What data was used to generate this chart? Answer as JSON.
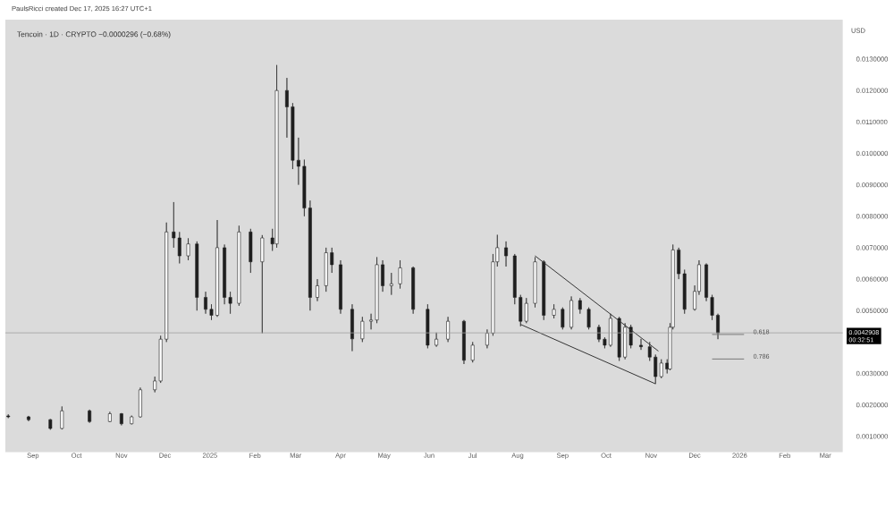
{
  "chart_data": {
    "type": "candlestick",
    "title": "Tencoin · 1D · CRYPTO  −0.0000296 (−0.68%)",
    "ylabel": "USD",
    "annotations": [
      "PaulsRicci created Dec 17, 2025 16:27 UTC+1",
      "00:32:51",
      {
        "text": "0.618",
        "x": "2026-01-04",
        "y": 0.00424
      },
      {
        "text": "0.786",
        "x": "2026-01-04",
        "y": 0.00346
      }
    ],
    "color": "#1e1e1e",
    "x": [
      "2024-08-15",
      "2024-08-29",
      "2024-09-13",
      "2024-09-21",
      "2024-10-10",
      "2024-10-24",
      "2024-11-01",
      "2024-11-08",
      "2024-11-14",
      "2024-11-24",
      "2024-11-28",
      "2024-12-02",
      "2024-12-07",
      "2024-12-11",
      "2024-12-17",
      "2024-12-23",
      "2024-12-29",
      "2025-01-02",
      "2025-01-06",
      "2025-01-11",
      "2025-01-15",
      "2025-01-21",
      "2025-01-29",
      "2025-02-06",
      "2025-02-13",
      "2025-02-16",
      "2025-02-23",
      "2025-02-27",
      "2025-03-03",
      "2025-03-07",
      "2025-03-11",
      "2025-03-16",
      "2025-03-22",
      "2025-03-26",
      "2025-04-01",
      "2025-04-09",
      "2025-04-16",
      "2025-04-22",
      "2025-04-26",
      "2025-04-30",
      "2025-05-06",
      "2025-05-12",
      "2025-05-21",
      "2025-05-31",
      "2025-06-06",
      "2025-06-14",
      "2025-06-25",
      "2025-07-01",
      "2025-07-11",
      "2025-07-15",
      "2025-07-18",
      "2025-07-24",
      "2025-07-30",
      "2025-08-03",
      "2025-08-07",
      "2025-08-13",
      "2025-08-19",
      "2025-08-26",
      "2025-09-01",
      "2025-09-07",
      "2025-09-13",
      "2025-09-19",
      "2025-09-26",
      "2025-09-30",
      "2025-10-04",
      "2025-10-10",
      "2025-10-14",
      "2025-10-18",
      "2025-10-25",
      "2025-10-31",
      "2025-11-04",
      "2025-11-08",
      "2025-11-12",
      "2025-11-14",
      "2025-11-16",
      "2025-11-20",
      "2025-11-24",
      "2025-12-01",
      "2025-12-04",
      "2025-12-09",
      "2025-12-13",
      "2025-12-17"
    ],
    "ohlc": [
      [
        0.00165,
        0.0017,
        0.00158,
        0.00162
      ],
      [
        0.00162,
        0.00165,
        0.00148,
        0.00153
      ],
      [
        0.00153,
        0.00155,
        0.00121,
        0.00125
      ],
      [
        0.00125,
        0.00195,
        0.00122,
        0.00181
      ],
      [
        0.00181,
        0.00185,
        0.00143,
        0.00147
      ],
      [
        0.00147,
        0.00178,
        0.00145,
        0.00172
      ],
      [
        0.00172,
        0.00174,
        0.00135,
        0.0014
      ],
      [
        0.0014,
        0.00166,
        0.00138,
        0.00162
      ],
      [
        0.00162,
        0.00255,
        0.0016,
        0.00248
      ],
      [
        0.00248,
        0.0029,
        0.0024,
        0.00276
      ],
      [
        0.00276,
        0.0042,
        0.0027,
        0.00409
      ],
      [
        0.00409,
        0.0078,
        0.004,
        0.0075
      ],
      [
        0.0075,
        0.00845,
        0.007,
        0.00731
      ],
      [
        0.00731,
        0.0075,
        0.0065,
        0.00674
      ],
      [
        0.00674,
        0.0073,
        0.0066,
        0.00712
      ],
      [
        0.00712,
        0.0072,
        0.005,
        0.00542
      ],
      [
        0.00542,
        0.0056,
        0.0049,
        0.00504
      ],
      [
        0.00504,
        0.0052,
        0.0047,
        0.00485
      ],
      [
        0.00485,
        0.00788,
        0.0048,
        0.007
      ],
      [
        0.007,
        0.0071,
        0.0052,
        0.00542
      ],
      [
        0.00542,
        0.0056,
        0.0049,
        0.00523
      ],
      [
        0.00523,
        0.0077,
        0.00515,
        0.0075
      ],
      [
        0.0075,
        0.0076,
        0.0062,
        0.00655
      ],
      [
        0.00655,
        0.0074,
        0.00428,
        0.00731
      ],
      [
        0.00731,
        0.0076,
        0.0069,
        0.00712
      ],
      [
        0.00712,
        0.01281,
        0.007,
        0.012
      ],
      [
        0.012,
        0.0124,
        0.0105,
        0.01148
      ],
      [
        0.01148,
        0.0116,
        0.0095,
        0.00978
      ],
      [
        0.00978,
        0.0105,
        0.009,
        0.00959
      ],
      [
        0.00959,
        0.0098,
        0.008,
        0.00826
      ],
      [
        0.00826,
        0.0085,
        0.005,
        0.00542
      ],
      [
        0.00542,
        0.006,
        0.0053,
        0.00579
      ],
      [
        0.00579,
        0.007,
        0.0056,
        0.00684
      ],
      [
        0.00684,
        0.007,
        0.0062,
        0.00646
      ],
      [
        0.00646,
        0.0066,
        0.0049,
        0.00504
      ],
      [
        0.00504,
        0.0052,
        0.00371,
        0.0041
      ],
      [
        0.0041,
        0.0048,
        0.004,
        0.00466
      ],
      [
        0.00466,
        0.0049,
        0.0044,
        0.0047
      ],
      [
        0.0047,
        0.0067,
        0.0046,
        0.00646
      ],
      [
        0.00646,
        0.0066,
        0.0056,
        0.00579
      ],
      [
        0.00579,
        0.0062,
        0.0055,
        0.00585
      ],
      [
        0.00585,
        0.0066,
        0.0057,
        0.00636
      ],
      [
        0.00636,
        0.0064,
        0.0049,
        0.00504
      ],
      [
        0.00504,
        0.0052,
        0.0038,
        0.0039
      ],
      [
        0.0039,
        0.0043,
        0.00385,
        0.00409
      ],
      [
        0.00409,
        0.0048,
        0.004,
        0.00466
      ],
      [
        0.00466,
        0.0047,
        0.0033,
        0.00342
      ],
      [
        0.00342,
        0.004,
        0.00335,
        0.0039
      ],
      [
        0.0039,
        0.0044,
        0.0038,
        0.00428
      ],
      [
        0.00428,
        0.0068,
        0.0042,
        0.00655
      ],
      [
        0.00655,
        0.00741,
        0.0064,
        0.007
      ],
      [
        0.007,
        0.0072,
        0.0064,
        0.00674
      ],
      [
        0.00674,
        0.0068,
        0.0052,
        0.00542
      ],
      [
        0.00542,
        0.0055,
        0.0045,
        0.00466
      ],
      [
        0.00466,
        0.0054,
        0.0046,
        0.00523
      ],
      [
        0.00523,
        0.0067,
        0.0051,
        0.00655
      ],
      [
        0.00655,
        0.0066,
        0.0047,
        0.00485
      ],
      [
        0.00485,
        0.0052,
        0.00475,
        0.00504
      ],
      [
        0.00504,
        0.0051,
        0.0044,
        0.00447
      ],
      [
        0.00447,
        0.00545,
        0.0044,
        0.00532
      ],
      [
        0.00532,
        0.0054,
        0.0049,
        0.00504
      ],
      [
        0.00504,
        0.0051,
        0.0044,
        0.00447
      ],
      [
        0.00447,
        0.00455,
        0.004,
        0.00409
      ],
      [
        0.00409,
        0.00415,
        0.0038,
        0.0039
      ],
      [
        0.0039,
        0.0049,
        0.00385,
        0.00475
      ],
      [
        0.00475,
        0.0048,
        0.0034,
        0.00352
      ],
      [
        0.00352,
        0.0046,
        0.00345,
        0.00447
      ],
      [
        0.00447,
        0.00455,
        0.0038,
        0.0039
      ],
      [
        0.0039,
        0.0041,
        0.00375,
        0.00385
      ],
      [
        0.00385,
        0.004,
        0.0034,
        0.00352
      ],
      [
        0.00352,
        0.0036,
        0.00267,
        0.0029
      ],
      [
        0.0029,
        0.00345,
        0.00285,
        0.00333
      ],
      [
        0.00333,
        0.00345,
        0.003,
        0.00314
      ],
      [
        0.00314,
        0.0046,
        0.0031,
        0.00447
      ],
      [
        0.00447,
        0.0071,
        0.0044,
        0.00693
      ],
      [
        0.00693,
        0.007,
        0.006,
        0.00617
      ],
      [
        0.00617,
        0.0063,
        0.0049,
        0.00504
      ],
      [
        0.00504,
        0.0058,
        0.005,
        0.00561
      ],
      [
        0.00561,
        0.0066,
        0.0055,
        0.00646
      ],
      [
        0.00646,
        0.0065,
        0.0053,
        0.00542
      ],
      [
        0.00542,
        0.0055,
        0.0047,
        0.00485
      ],
      [
        0.00485,
        0.0049,
        0.00409,
        0.00429
      ]
    ],
    "series": [
      {
        "type": "line",
        "color": "#333333",
        "x": [
          "2025-08-13",
          "2025-11-06"
        ],
        "values": [
          0.00674,
          0.00371
        ]
      },
      {
        "type": "line",
        "color": "#333333",
        "x": [
          "2025-08-03",
          "2025-11-04"
        ],
        "values": [
          0.00456,
          0.00267
        ]
      },
      {
        "type": "line",
        "color": "#787878",
        "x": [
          "2025-12-13",
          "2026-01-04"
        ],
        "values": [
          0.00424,
          0.00424
        ]
      },
      {
        "type": "line",
        "color": "#787878",
        "x": [
          "2025-12-13",
          "2026-01-04"
        ],
        "values": [
          0.00346,
          0.00346
        ]
      }
    ],
    "ref_lines": [
      {
        "axis": "y",
        "value": 0.0042908,
        "label": "0.0042908",
        "color": "#a0a0a0"
      }
    ],
    "xlim": [
      "2024-08-13",
      "2026-03-13"
    ],
    "ylim": [
      0.0005,
      0.01425
    ],
    "xticks": [
      {
        "value": "2024-09-01",
        "label": "Sep"
      },
      {
        "value": "2024-10-01",
        "label": "Oct"
      },
      {
        "value": "2024-11-01",
        "label": "Nov"
      },
      {
        "value": "2024-12-01",
        "label": "Dec"
      },
      {
        "value": "2025-01-01",
        "label": "2025"
      },
      {
        "value": "2025-02-01",
        "label": "Feb"
      },
      {
        "value": "2025-03-01",
        "label": "Mar"
      },
      {
        "value": "2025-04-01",
        "label": "Apr"
      },
      {
        "value": "2025-05-01",
        "label": "May"
      },
      {
        "value": "2025-06-01",
        "label": "Jun"
      },
      {
        "value": "2025-07-01",
        "label": "Jul"
      },
      {
        "value": "2025-08-01",
        "label": "Aug"
      },
      {
        "value": "2025-09-01",
        "label": "Sep"
      },
      {
        "value": "2025-10-01",
        "label": "Oct"
      },
      {
        "value": "2025-11-01",
        "label": "Nov"
      },
      {
        "value": "2025-12-01",
        "label": "Dec"
      },
      {
        "value": "2026-01-01",
        "label": "2026"
      },
      {
        "value": "2026-02-01",
        "label": "Feb"
      },
      {
        "value": "2026-03-01",
        "label": "Mar"
      }
    ],
    "yticks": [
      {
        "value": 0.001,
        "label": "0.0010000"
      },
      {
        "value": 0.002,
        "label": "0.0020000"
      },
      {
        "value": 0.003,
        "label": "0.0030000"
      },
      {
        "value": 0.005,
        "label": "0.0050000"
      },
      {
        "value": 0.006,
        "label": "0.0060000"
      },
      {
        "value": 0.007,
        "label": "0.0070000"
      },
      {
        "value": 0.008,
        "label": "0.0080000"
      },
      {
        "value": 0.009,
        "label": "0.0090000"
      },
      {
        "value": 0.01,
        "label": "0.0100000"
      },
      {
        "value": 0.011,
        "label": "0.0110000"
      },
      {
        "value": 0.012,
        "label": "0.0120000"
      },
      {
        "value": 0.013,
        "label": "0.0130000"
      }
    ],
    "grid": false
  }
}
